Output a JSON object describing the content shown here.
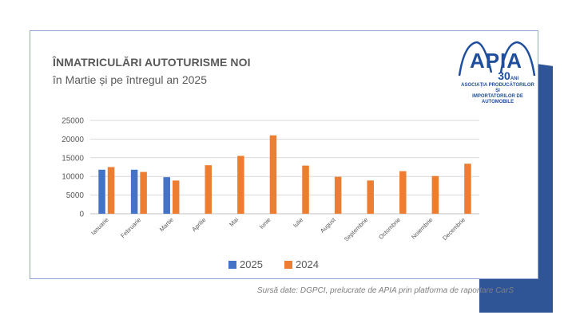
{
  "header": {
    "title": "ÎNMATRICULĂRI AUTOTURISME NOI",
    "subtitle": "în Martie și pe întregul an 2025"
  },
  "logo": {
    "brand": "APIA",
    "years": "30",
    "years_suffix": "ANI",
    "tagline_line1": "ASOCIAȚIA PRODUCĂTORILOR ȘI",
    "tagline_line2": "IMPORTATORILOR DE AUTOMOBILE"
  },
  "source_note": "Sursă date: DGPCI, prelucrate de APIA prin platforma de raportare CarS",
  "colors": {
    "series_2025": "#4472c4",
    "series_2024": "#ed7d31",
    "logo_blue": "#1f4e9c",
    "deco_blue": "#2f5597"
  },
  "chart_data": {
    "type": "bar",
    "title": "ÎNMATRICULĂRI AUTOTURISME NOI",
    "subtitle": "în Martie și pe întregul an 2025",
    "xlabel": "",
    "ylabel": "",
    "ylim": [
      0,
      25000
    ],
    "yticks": [
      0,
      5000,
      10000,
      15000,
      20000,
      25000
    ],
    "grid": true,
    "legend_position": "bottom",
    "categories": [
      "Ianuarie",
      "Februarie",
      "Martie",
      "Aprilie",
      "Mai",
      "Iunie",
      "Iulie",
      "August",
      "Septembrie",
      "Octombrie",
      "Noiembrie",
      "Decembrie"
    ],
    "series": [
      {
        "name": "2025",
        "values": [
          11800,
          11800,
          9800,
          null,
          null,
          null,
          null,
          null,
          null,
          null,
          null,
          null
        ]
      },
      {
        "name": "2024",
        "values": [
          12500,
          11200,
          8900,
          13000,
          15500,
          21000,
          12900,
          9900,
          8900,
          11400,
          10100,
          13400
        ]
      }
    ]
  }
}
